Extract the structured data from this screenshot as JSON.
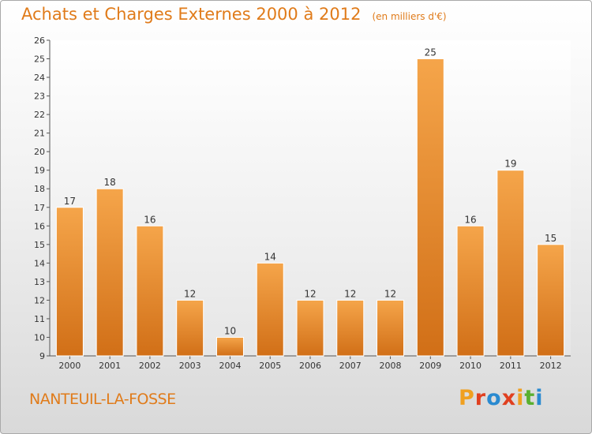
{
  "title": "Achats et Charges Externes 2000 à 2012",
  "unit": "(en milliers d'€)",
  "commune": "NANTEUIL-LA-FOSSE",
  "logo": {
    "letters": [
      "P",
      "r",
      "o",
      "x",
      "i",
      "t",
      "i"
    ],
    "colors": [
      "#f0a020",
      "#e04020",
      "#2a8ad0",
      "#e04020",
      "#f0a020",
      "#5ab030",
      "#2a8ad0"
    ]
  },
  "colors": {
    "bar": "#f19a3a",
    "bar_dark": "#d9761b",
    "text": "#e07b1a"
  },
  "chart_data": {
    "type": "bar",
    "categories": [
      "2000",
      "2001",
      "2002",
      "2003",
      "2004",
      "2005",
      "2006",
      "2007",
      "2008",
      "2009",
      "2010",
      "2011",
      "2012"
    ],
    "values": [
      17,
      18,
      16,
      12,
      10,
      14,
      12,
      12,
      12,
      25,
      16,
      19,
      15
    ],
    "ylim": [
      9,
      26
    ],
    "yticks": [
      9,
      10,
      11,
      12,
      13,
      14,
      15,
      16,
      17,
      18,
      19,
      20,
      21,
      22,
      23,
      24,
      25,
      26
    ],
    "grid": false
  }
}
